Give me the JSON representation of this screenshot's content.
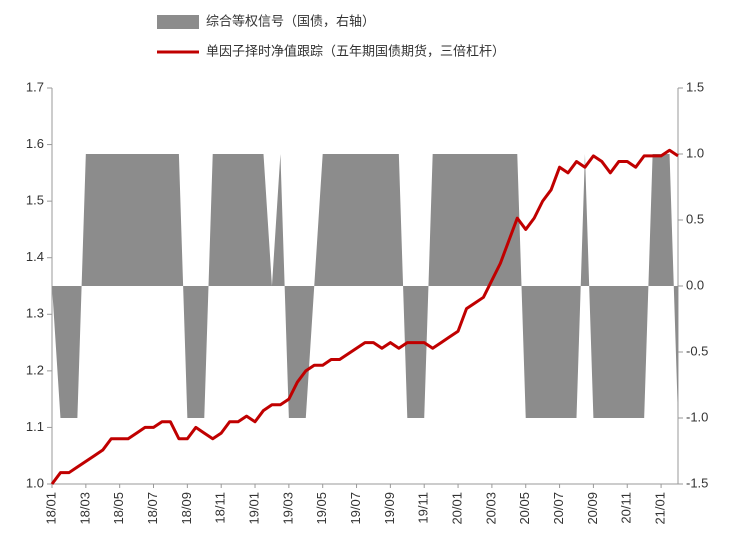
{
  "chart_data": {
    "type": "line",
    "categories": [
      "18/01",
      null,
      null,
      null,
      "18/03",
      null,
      null,
      null,
      "18/05",
      null,
      null,
      null,
      "18/07",
      null,
      null,
      null,
      "18/09",
      null,
      null,
      null,
      "18/11",
      null,
      null,
      null,
      "19/01",
      null,
      null,
      null,
      "19/03",
      null,
      null,
      null,
      "19/05",
      null,
      null,
      null,
      "19/07",
      null,
      null,
      null,
      "19/09",
      null,
      null,
      null,
      "19/11",
      null,
      null,
      null,
      "20/01",
      null,
      null,
      null,
      "20/03",
      null,
      null,
      null,
      "20/05",
      null,
      null,
      null,
      "20/07",
      null,
      null,
      null,
      "20/09",
      null,
      null,
      null,
      "20/11",
      null,
      null,
      null,
      "21/01",
      null,
      null
    ],
    "series": [
      {
        "name": "综合等权信号（国债，右轴）",
        "type": "area",
        "axis": "y2",
        "color": "#8c8c8c",
        "values": [
          0,
          -1,
          -1,
          -1,
          1,
          1,
          1,
          1,
          1,
          1,
          1,
          1,
          1,
          1,
          1,
          1,
          -1,
          -1,
          -1,
          1,
          1,
          1,
          1,
          1,
          1,
          1,
          0,
          1,
          -1,
          -1,
          -1,
          0,
          1,
          1,
          1,
          1,
          1,
          1,
          1,
          1,
          1,
          1,
          -1,
          -1,
          -1,
          1,
          1,
          1,
          1,
          1,
          1,
          1,
          1,
          1,
          1,
          1,
          -1,
          -1,
          -1,
          -1,
          -1,
          -1,
          -1,
          1,
          -1,
          -1,
          -1,
          -1,
          -1,
          -1,
          -1,
          1,
          1,
          1,
          -1
        ]
      },
      {
        "name": "单因子择时净值跟踪（五年期国债期货，三倍杠杆）",
        "type": "line",
        "axis": "y",
        "color": "#c00000",
        "values": [
          1.0,
          1.02,
          1.02,
          1.03,
          1.04,
          1.05,
          1.06,
          1.08,
          1.08,
          1.08,
          1.09,
          1.1,
          1.1,
          1.11,
          1.11,
          1.08,
          1.08,
          1.1,
          1.09,
          1.08,
          1.09,
          1.11,
          1.11,
          1.12,
          1.11,
          1.13,
          1.14,
          1.14,
          1.15,
          1.18,
          1.2,
          1.21,
          1.21,
          1.22,
          1.22,
          1.23,
          1.24,
          1.25,
          1.25,
          1.24,
          1.25,
          1.24,
          1.25,
          1.25,
          1.25,
          1.24,
          1.25,
          1.26,
          1.27,
          1.31,
          1.32,
          1.33,
          1.36,
          1.39,
          1.43,
          1.47,
          1.45,
          1.47,
          1.5,
          1.52,
          1.56,
          1.55,
          1.57,
          1.56,
          1.58,
          1.57,
          1.55,
          1.57,
          1.57,
          1.56,
          1.58,
          1.58,
          1.58,
          1.59,
          1.58
        ]
      }
    ],
    "ylim": [
      1.0,
      1.7
    ],
    "yticks": [
      {
        "value": 1.0,
        "label": "1.0"
      },
      1.1,
      1.2,
      1.3,
      1.4,
      1.5,
      1.6,
      1.7
    ],
    "y2lim": [
      -1.5,
      1.5
    ],
    "y2ticks": [
      -1.5,
      {
        "value": -1.0,
        "label": "-1.0"
      },
      -0.5,
      {
        "value": 0.0,
        "label": "0.0"
      },
      0.5,
      {
        "value": 1.0,
        "label": "1.0"
      },
      1.5
    ]
  }
}
